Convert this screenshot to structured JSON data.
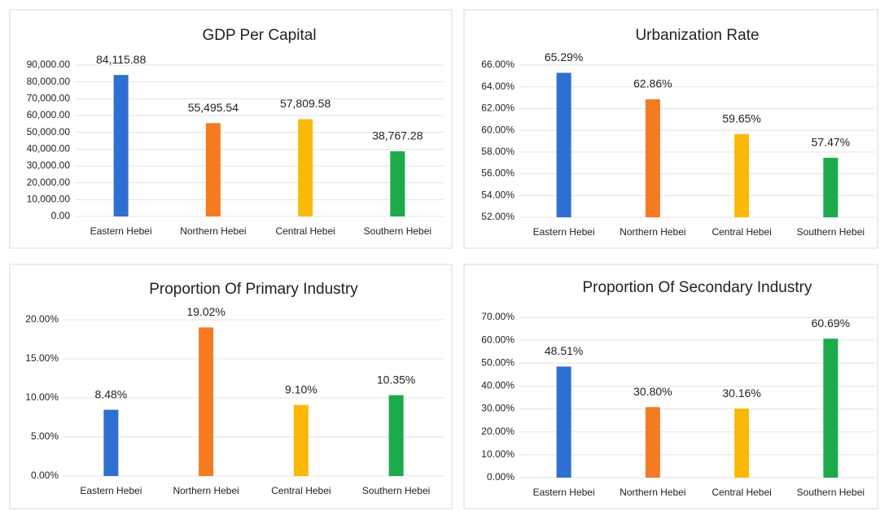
{
  "chart_data": [
    {
      "type": "bar",
      "title": "GDP Per Capital",
      "categories": [
        "Eastern Hebei",
        "Northern Hebei",
        "Central Hebei",
        "Southern Hebei"
      ],
      "values": [
        84115.88,
        55495.54,
        57809.58,
        38767.28
      ],
      "value_labels": [
        "84,115.88",
        "55,495.54",
        "57,809.58",
        "38,767.28"
      ],
      "colors": [
        "#2f6fd1",
        "#f67a22",
        "#fbb807",
        "#1bab4b"
      ],
      "ylim": [
        0,
        90000
      ],
      "yticks": [
        {
          "value": 0,
          "label": "0.00"
        },
        {
          "value": 10000,
          "label": "10,000.00"
        },
        {
          "value": 20000,
          "label": "20,000.00"
        },
        {
          "value": 30000,
          "label": "30,000.00"
        },
        {
          "value": 40000,
          "label": "40,000.00"
        },
        {
          "value": 50000,
          "label": "50,000.00"
        },
        {
          "value": 60000,
          "label": "60,000.00"
        },
        {
          "value": 70000,
          "label": "70,000.00"
        },
        {
          "value": 80000,
          "label": "80,000.00"
        },
        {
          "value": 90000,
          "label": "90,000.00"
        }
      ],
      "grid": true
    },
    {
      "type": "bar",
      "title": "Urbanization Rate",
      "categories": [
        "Eastern Hebei",
        "Northern Hebei",
        "Central Hebei",
        "Southern Hebei"
      ],
      "values": [
        65.29,
        62.86,
        59.65,
        57.47
      ],
      "value_labels": [
        "65.29%",
        "62.86%",
        "59.65%",
        "57.47%"
      ],
      "colors": [
        "#2f6fd1",
        "#f67a22",
        "#fbb807",
        "#1bab4b"
      ],
      "ylim": [
        52,
        66
      ],
      "yticks": [
        {
          "value": 52,
          "label": "52.00%"
        },
        {
          "value": 54,
          "label": "54.00%"
        },
        {
          "value": 56,
          "label": "56.00%"
        },
        {
          "value": 58,
          "label": "58.00%"
        },
        {
          "value": 60,
          "label": "60.00%"
        },
        {
          "value": 62,
          "label": "62.00%"
        },
        {
          "value": 64,
          "label": "64.00%"
        },
        {
          "value": 66,
          "label": "66.00%"
        }
      ],
      "grid": true
    },
    {
      "type": "bar",
      "title": "Proportion Of Primary Industry",
      "categories": [
        "Eastern Hebei",
        "Northern Hebei",
        "Central Hebei",
        "Southern Hebei"
      ],
      "values": [
        8.48,
        19.02,
        9.1,
        10.35
      ],
      "value_labels": [
        "8.48%",
        "19.02%",
        "9.10%",
        "10.35%"
      ],
      "colors": [
        "#2f6fd1",
        "#f67a22",
        "#fbb807",
        "#1bab4b"
      ],
      "ylim": [
        0,
        20
      ],
      "yticks": [
        {
          "value": 0,
          "label": "0.00%"
        },
        {
          "value": 5,
          "label": "5.00%"
        },
        {
          "value": 10,
          "label": "10.00%"
        },
        {
          "value": 15,
          "label": "15.00%"
        },
        {
          "value": 20,
          "label": "20.00%"
        }
      ],
      "grid": true
    },
    {
      "type": "bar",
      "title": "Proportion Of Secondary Industry",
      "categories": [
        "Eastern Hebei",
        "Northern Hebei",
        "Central Hebei",
        "Southern Hebei"
      ],
      "values": [
        48.51,
        30.8,
        30.16,
        60.69
      ],
      "value_labels": [
        "48.51%",
        "30.80%",
        "30.16%",
        "60.69%"
      ],
      "colors": [
        "#2f6fd1",
        "#f67a22",
        "#fbb807",
        "#1bab4b"
      ],
      "ylim": [
        0,
        70
      ],
      "yticks": [
        {
          "value": 0,
          "label": "0.00%"
        },
        {
          "value": 10,
          "label": "10.00%"
        },
        {
          "value": 20,
          "label": "20.00%"
        },
        {
          "value": 30,
          "label": "30.00%"
        },
        {
          "value": 40,
          "label": "40.00%"
        },
        {
          "value": 50,
          "label": "50.00%"
        },
        {
          "value": 60,
          "label": "60.00%"
        },
        {
          "value": 70,
          "label": "70.00%"
        }
      ],
      "grid": true
    }
  ]
}
